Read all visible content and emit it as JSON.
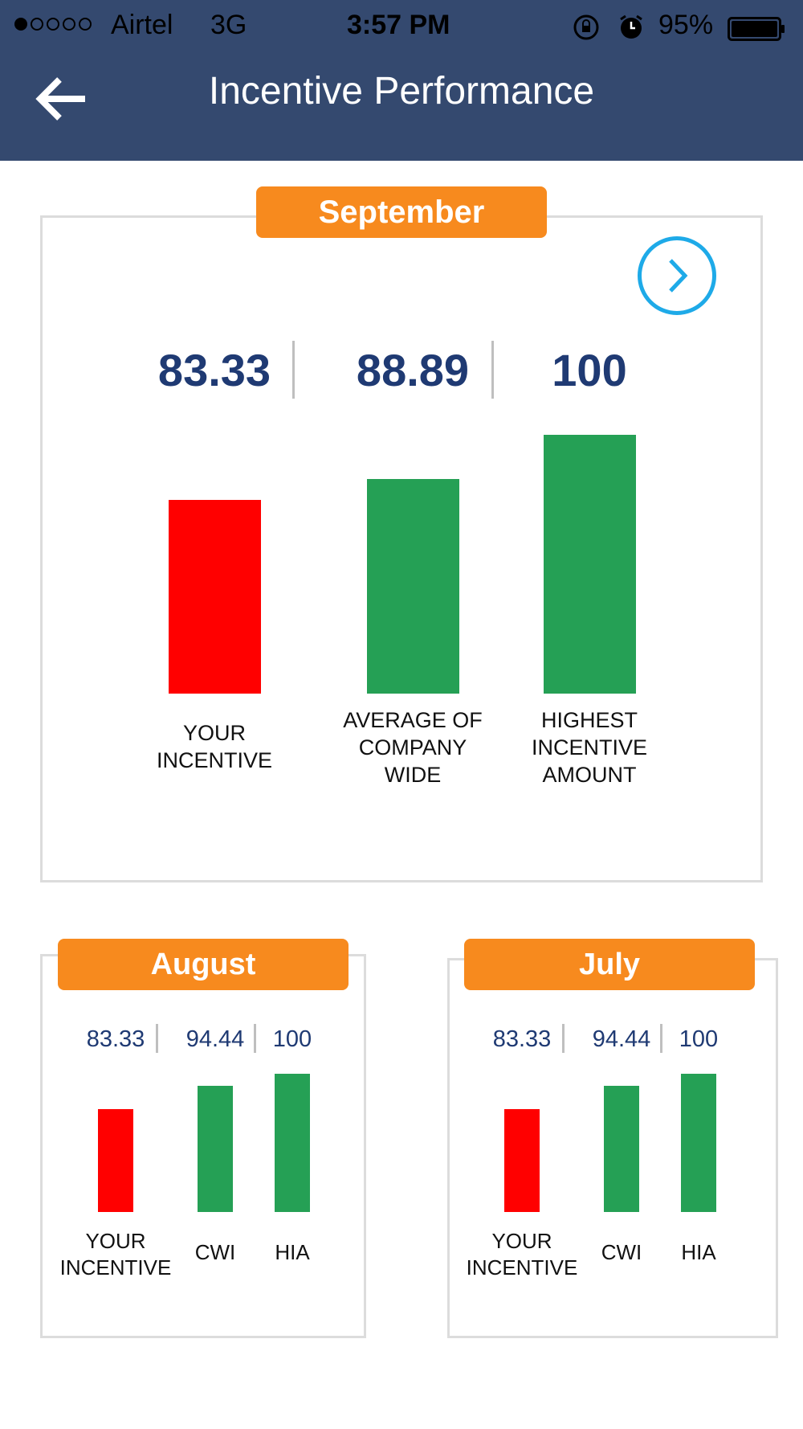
{
  "status_bar": {
    "carrier": "Airtel",
    "network": "3G",
    "time": "3:57 PM",
    "battery_percent": "95%",
    "icons": [
      "signal-dots",
      "rotation-lock-icon",
      "alarm-icon",
      "battery-icon"
    ]
  },
  "header": {
    "title": "Incentive Performance",
    "back_icon": "arrow-left-icon",
    "background_color": "#34496f"
  },
  "colors": {
    "below_average": "#ff0000",
    "good": "#25a055",
    "month_badge": "#f78a1e",
    "value_text": "#1f3a73",
    "next_button": "#1eaae8"
  },
  "cards": [
    {
      "month": "September",
      "next_icon": "chevron-right-circle-icon",
      "values": [
        "83.33",
        "88.89",
        "100"
      ],
      "labels": [
        [
          "YOUR",
          "INCENTIVE"
        ],
        [
          "AVERAGE OF",
          "COMPANY",
          "WIDE"
        ],
        [
          "HIGHEST",
          "INCENTIVE",
          "AMOUNT"
        ]
      ],
      "levels": [
        83.33,
        88.89,
        100
      ],
      "bar_colors": [
        "#ff0000",
        "#25a055",
        "#25a055"
      ]
    },
    {
      "month": "August",
      "values": [
        "83.33",
        "94.44",
        "100"
      ],
      "labels": [
        [
          "YOUR",
          "INCENTIVE"
        ],
        [
          "CWI"
        ],
        [
          "HIA"
        ]
      ],
      "levels": [
        83.33,
        94.44,
        100
      ],
      "bar_colors": [
        "#ff0000",
        "#25a055",
        "#25a055"
      ]
    },
    {
      "month": "July",
      "values": [
        "83.33",
        "94.44",
        "100"
      ],
      "labels": [
        [
          "YOUR",
          "INCENTIVE"
        ],
        [
          "CWI"
        ],
        [
          "HIA"
        ]
      ],
      "levels": [
        83.33,
        94.44,
        100
      ],
      "bar_colors": [
        "#ff0000",
        "#25a055",
        "#25a055"
      ]
    }
  ]
}
